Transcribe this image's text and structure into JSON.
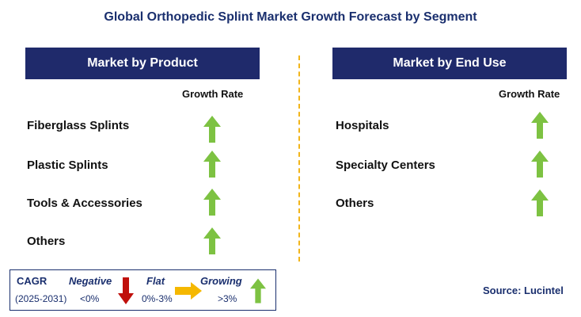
{
  "title": "Global Orthopedic Splint Market Growth Forecast by Segment",
  "left_panel": {
    "header": "Market by Product",
    "growth_rate_label": "Growth Rate",
    "items": [
      {
        "label": "Fiberglass Splints",
        "trend": "growing"
      },
      {
        "label": "Plastic Splints",
        "trend": "growing"
      },
      {
        "label": "Tools & Accessories",
        "trend": "growing"
      },
      {
        "label": "Others",
        "trend": "growing"
      }
    ]
  },
  "right_panel": {
    "header": "Market by End Use",
    "growth_rate_label": "Growth Rate",
    "items": [
      {
        "label": "Hospitals",
        "trend": "growing"
      },
      {
        "label": "Specialty Centers",
        "trend": "growing"
      },
      {
        "label": "Others",
        "trend": "growing"
      }
    ]
  },
  "legend": {
    "cagr_label": "CAGR",
    "period": "(2025-2031)",
    "negative_label": "Negative",
    "negative_range": "<0%",
    "flat_label": "Flat",
    "flat_range": "0%-3%",
    "growing_label": "Growing",
    "growing_range": ">3%"
  },
  "source": "Source: Lucintel",
  "colors": {
    "header_bg": "#1f2a6b",
    "growing_arrow": "#7dc242",
    "negative_arrow": "#c0100c",
    "flat_arrow": "#f5b800",
    "divider": "#f2b51a"
  }
}
